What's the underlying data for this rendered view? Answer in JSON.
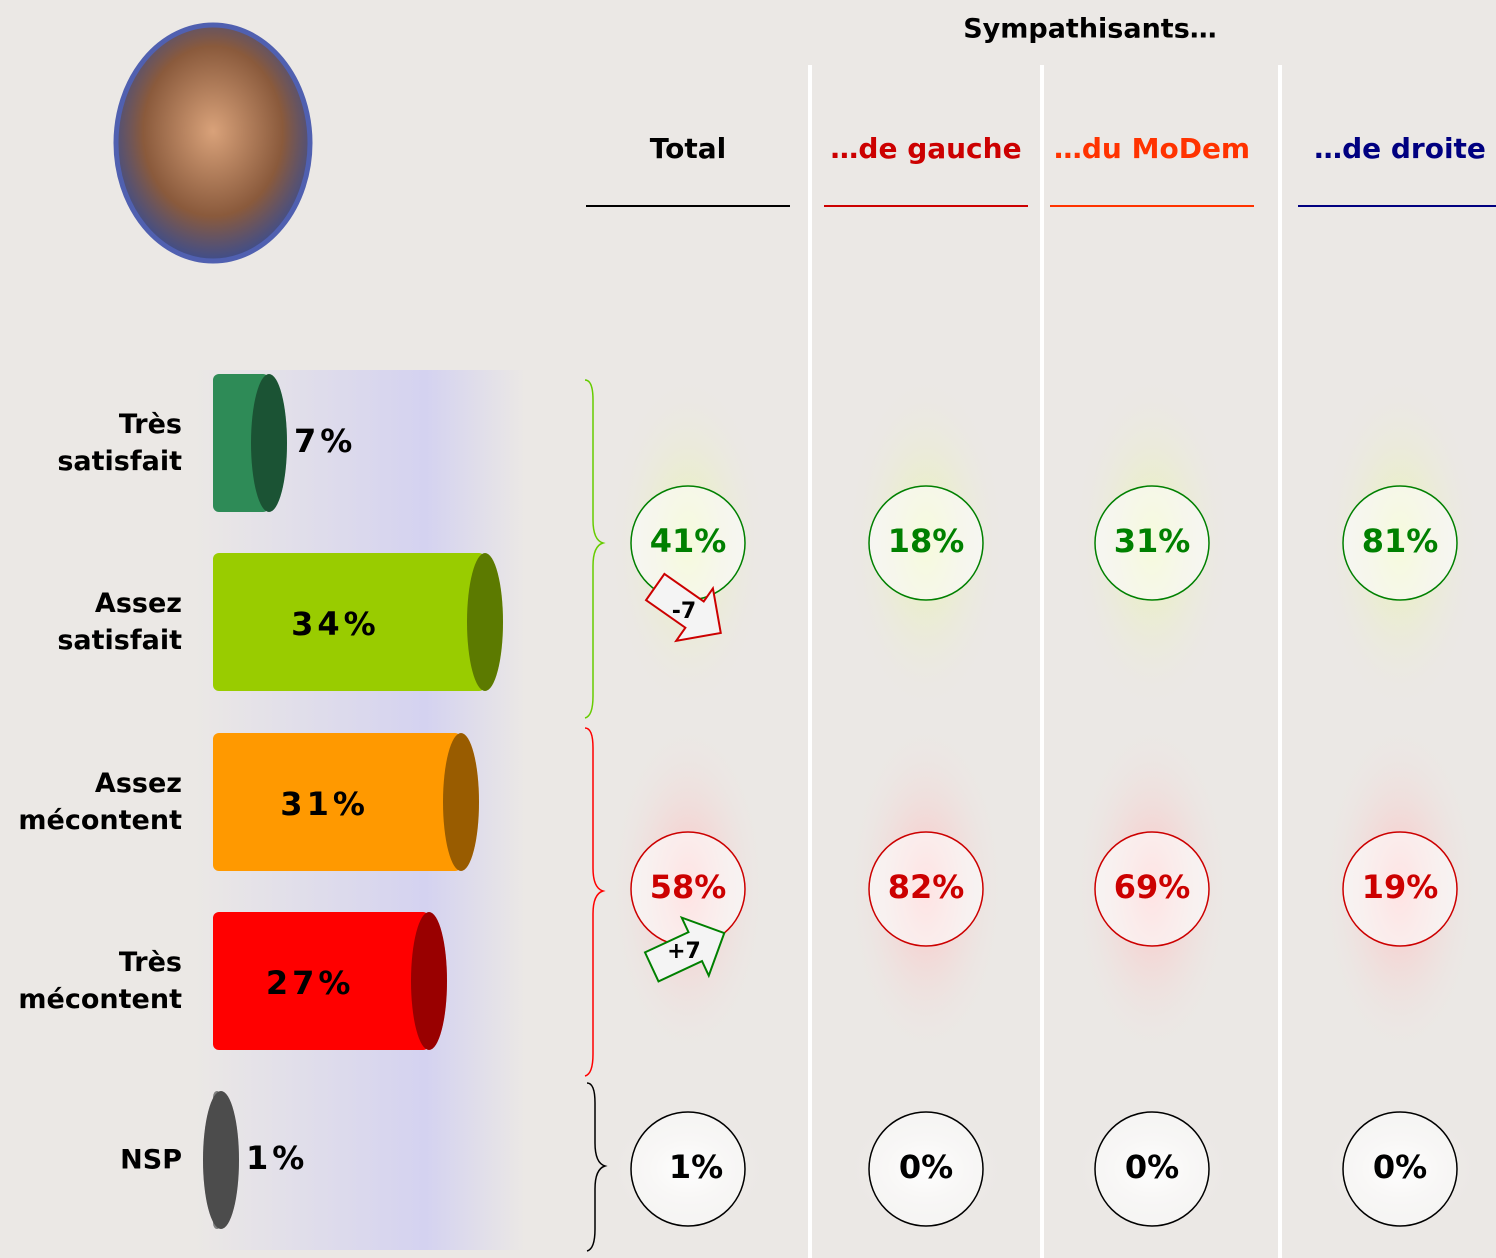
{
  "chart_data": {
    "type": "bar",
    "categories": [
      "Très satisfait",
      "Assez satisfait",
      "Assez mécontent",
      "Très mécontent",
      "NSP"
    ],
    "values": [
      7,
      34,
      31,
      27,
      1
    ],
    "value_labels": [
      "7%",
      "34%",
      "31%",
      "27%",
      "1%"
    ],
    "colors": [
      "#2e8b57",
      "#99cc00",
      "#ff9900",
      "#ff0000",
      "#7f7f7f"
    ],
    "table": {
      "group_title": "Sympathisants…",
      "columns": [
        "Total",
        "…de gauche",
        "…du MoDem",
        "…de droite"
      ],
      "column_colors": [
        "#000000",
        "#cc0000",
        "#ff3300",
        "#000080"
      ],
      "rows": [
        {
          "values": [
            41,
            18,
            31,
            81
          ],
          "value_labels": [
            "41%",
            "18%",
            "31%",
            "81%"
          ],
          "color": "#008000"
        },
        {
          "values": [
            58,
            82,
            69,
            19
          ],
          "value_labels": [
            "58%",
            "82%",
            "69%",
            "19%"
          ],
          "color": "#cc0000"
        },
        {
          "values": [
            1,
            0,
            0,
            0
          ],
          "value_labels": [
            "1%",
            "0%",
            "0%",
            "0%"
          ],
          "color": "#000000"
        }
      ],
      "changes": [
        -7,
        7
      ],
      "change_labels": [
        "-7",
        "+7"
      ],
      "change_colors": [
        "#cc0000",
        "#008000"
      ]
    }
  }
}
